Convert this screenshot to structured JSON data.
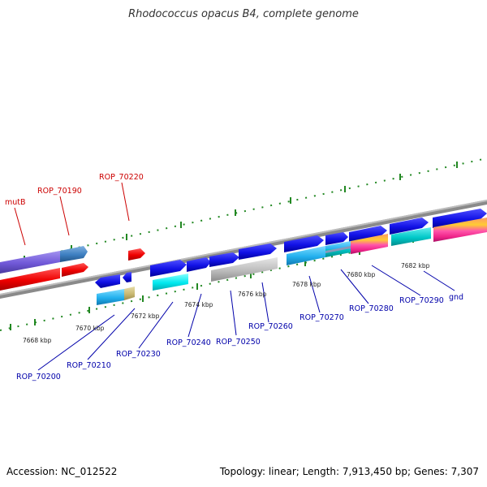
{
  "title": "Rhodococcus opacus B4, complete genome",
  "footer": {
    "accession": "Accession: NC_012522",
    "stats": "Topology: linear; Length: 7,913,450 bp; Genes: 7,307"
  },
  "colors": {
    "label_upper": "#cc0000",
    "label_lower": "#0000aa",
    "backbone": "#8a8a8a",
    "tick": "#228822"
  },
  "scale_labels": [
    "7668 kbp",
    "7670 kbp",
    "7672 kbp",
    "7674 kbp",
    "7676 kbp",
    "7678 kbp",
    "7680 kbp",
    "7682 kbp"
  ],
  "gene_labels_top": [
    "mutB",
    "ROP_70190",
    "ROP_70220"
  ],
  "gene_labels_bottom": [
    "ROP_70200",
    "ROP_70210",
    "ROP_70230",
    "ROP_70240",
    "ROP_70250",
    "ROP_70260",
    "ROP_70270",
    "ROP_70280",
    "ROP_70290",
    "gnd"
  ]
}
